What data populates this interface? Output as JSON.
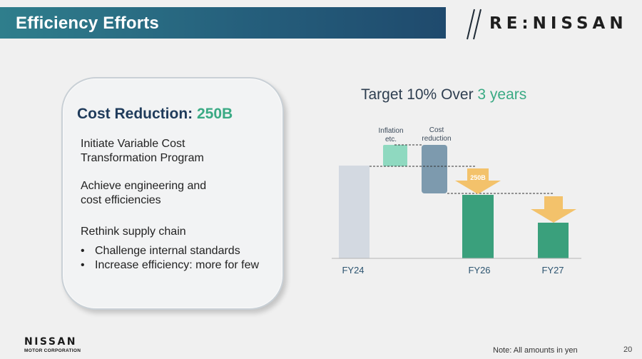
{
  "header": {
    "title": "Efficiency Efforts"
  },
  "brand": {
    "logo_text": "RE:NISSAN"
  },
  "card": {
    "title_prefix": "Cost Reduction: ",
    "title_value": "250B",
    "item1": [
      "Initiate Variable Cost",
      "Transformation Program"
    ],
    "item2": [
      "Achieve engineering and",
      "cost efficiencies"
    ],
    "item3_heading": "Rethink supply chain",
    "bullets": [
      "Challenge internal standards",
      "Increase efficiency: more for few"
    ]
  },
  "chart": {
    "title_prefix": "Target 10% Over ",
    "title_accent": "3 years",
    "labels": {
      "inflation": [
        "Inflation",
        "etc."
      ],
      "cost_reduction": [
        "Cost",
        "reduction"
      ],
      "badge": "250B"
    },
    "x_labels": [
      "FY24",
      "FY26",
      "FY27"
    ]
  },
  "chart_data": {
    "type": "waterfall",
    "categories": [
      "FY24",
      "Inflation etc.",
      "Cost reduction",
      "FY26",
      "FY27"
    ],
    "x_tick_labels": [
      "FY24",
      "FY26",
      "FY27"
    ],
    "callout": "250B",
    "title": "Target 10% Over 3 years"
  },
  "colors": {
    "accent_green": "#3aaa84",
    "title_navy": "#1f3b5b",
    "bar_fy24": "#d3d9e1",
    "bar_inflation": "#8fd9c0",
    "bar_cost_reduction": "#7d9aae",
    "bar_fy26": "#3aa07c",
    "bar_fy27": "#3aa07c",
    "arrow": "#f3c26b"
  },
  "footer": {
    "logo_main": "NISSAN",
    "logo_sub": "MOTOR CORPORATION",
    "note": "Note: All amounts in yen",
    "page_number": "20"
  }
}
